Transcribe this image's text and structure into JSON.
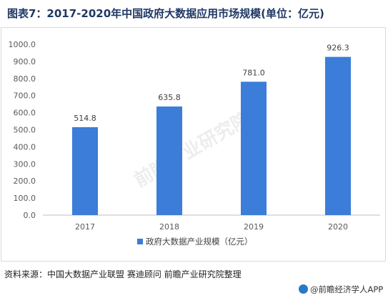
{
  "title": "图表7：2017-2020年中国政府大数据应用市场规模(单位：亿元)",
  "source": "资料来源：中国大数据产业联盟 赛迪顾问 前瞻产业研究院整理",
  "brand": "@前瞻经济学人APP",
  "watermark": "前瞻产业研究院",
  "colors": {
    "bar": "#3b7dd8",
    "title": "#1f3864"
  },
  "chart_data": {
    "type": "bar",
    "categories": [
      "2017",
      "2018",
      "2019",
      "2020"
    ],
    "series": [
      {
        "name": "政府大数据产业规模（亿元）",
        "values": [
          514.8,
          635.8,
          781.0,
          926.3
        ]
      }
    ],
    "data_labels": [
      "514.8",
      "635.8",
      "781.0",
      "926.3"
    ],
    "ylim": [
      0,
      1000
    ],
    "yticks": [
      "0.0",
      "100.0",
      "200.0",
      "300.0",
      "400.0",
      "500.0",
      "600.0",
      "700.0",
      "800.0",
      "900.0",
      "1000.0"
    ],
    "grid": false,
    "legend": "bottom"
  }
}
